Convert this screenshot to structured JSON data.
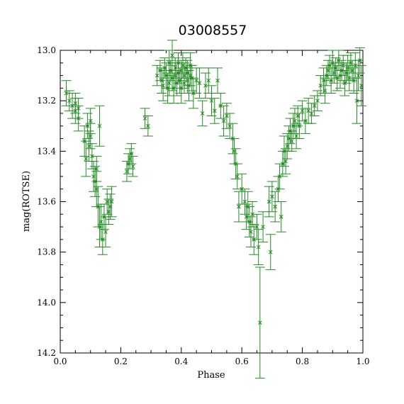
{
  "chart_data": {
    "type": "scatter",
    "title": "03008557",
    "xlabel": "Phase",
    "ylabel": "mag(ROTSE)",
    "xlim": [
      0,
      1
    ],
    "ylim": [
      14.2,
      13.0
    ],
    "y_inverted": true,
    "x_ticks": [
      "0.0",
      "0.2",
      "0.4",
      "0.6",
      "0.8",
      "1.0"
    ],
    "y_ticks": [
      "13.0",
      "13.2",
      "13.4",
      "13.6",
      "13.8",
      "14.0",
      "14.2"
    ],
    "grid": false,
    "marker": "x",
    "error_bars": true,
    "color": "#228b22",
    "points": [
      [
        0.02,
        13.17,
        0.05
      ],
      [
        0.03,
        13.2,
        0.04
      ],
      [
        0.04,
        13.22,
        0.05
      ],
      [
        0.05,
        13.21,
        0.04
      ],
      [
        0.05,
        13.24,
        0.05
      ],
      [
        0.06,
        13.23,
        0.04
      ],
      [
        0.06,
        13.27,
        0.05
      ],
      [
        0.08,
        13.36,
        0.06
      ],
      [
        0.085,
        13.43,
        0.07
      ],
      [
        0.09,
        13.3,
        0.05
      ],
      [
        0.095,
        13.38,
        0.06
      ],
      [
        0.1,
        13.34,
        0.05
      ],
      [
        0.1,
        13.28,
        0.05
      ],
      [
        0.105,
        13.42,
        0.05
      ],
      [
        0.11,
        13.5,
        0.06
      ],
      [
        0.115,
        13.52,
        0.06
      ],
      [
        0.12,
        13.47,
        0.05
      ],
      [
        0.12,
        13.55,
        0.07
      ],
      [
        0.125,
        13.62,
        0.08
      ],
      [
        0.13,
        13.7,
        0.08
      ],
      [
        0.13,
        13.3,
        0.08
      ],
      [
        0.135,
        13.68,
        0.07
      ],
      [
        0.14,
        13.75,
        0.06
      ],
      [
        0.145,
        13.66,
        0.05
      ],
      [
        0.15,
        13.72,
        0.06
      ],
      [
        0.155,
        13.6,
        0.05
      ],
      [
        0.16,
        13.64,
        0.05
      ],
      [
        0.165,
        13.62,
        0.05
      ],
      [
        0.17,
        13.6,
        0.06
      ],
      [
        0.22,
        13.48,
        0.04
      ],
      [
        0.225,
        13.45,
        0.04
      ],
      [
        0.23,
        13.43,
        0.04
      ],
      [
        0.235,
        13.41,
        0.04
      ],
      [
        0.24,
        13.46,
        0.04
      ],
      [
        0.28,
        13.27,
        0.04
      ],
      [
        0.29,
        13.3,
        0.04
      ],
      [
        0.32,
        13.1,
        0.04
      ],
      [
        0.33,
        13.08,
        0.04
      ],
      [
        0.335,
        13.12,
        0.05
      ],
      [
        0.34,
        13.14,
        0.06
      ],
      [
        0.345,
        13.07,
        0.04
      ],
      [
        0.35,
        13.1,
        0.05
      ],
      [
        0.355,
        13.15,
        0.06
      ],
      [
        0.36,
        13.05,
        0.05
      ],
      [
        0.36,
        13.13,
        0.05
      ],
      [
        0.365,
        13.08,
        0.04
      ],
      [
        0.37,
        13.02,
        0.06
      ],
      [
        0.37,
        13.11,
        0.05
      ],
      [
        0.375,
        13.15,
        0.06
      ],
      [
        0.38,
        13.07,
        0.04
      ],
      [
        0.38,
        13.1,
        0.05
      ],
      [
        0.385,
        13.13,
        0.05
      ],
      [
        0.39,
        13.05,
        0.04
      ],
      [
        0.39,
        13.09,
        0.04
      ],
      [
        0.395,
        13.12,
        0.05
      ],
      [
        0.4,
        13.08,
        0.04
      ],
      [
        0.4,
        13.15,
        0.06
      ],
      [
        0.405,
        13.06,
        0.05
      ],
      [
        0.41,
        13.1,
        0.05
      ],
      [
        0.41,
        13.13,
        0.04
      ],
      [
        0.415,
        13.07,
        0.04
      ],
      [
        0.42,
        13.12,
        0.05
      ],
      [
        0.42,
        13.09,
        0.05
      ],
      [
        0.425,
        13.14,
        0.06
      ],
      [
        0.43,
        13.1,
        0.04
      ],
      [
        0.43,
        13.06,
        0.05
      ],
      [
        0.435,
        13.11,
        0.05
      ],
      [
        0.44,
        13.17,
        0.06
      ],
      [
        0.45,
        13.12,
        0.05
      ],
      [
        0.46,
        13.13,
        0.06
      ],
      [
        0.47,
        13.25,
        0.05
      ],
      [
        0.48,
        13.14,
        0.05
      ],
      [
        0.49,
        13.12,
        0.05
      ],
      [
        0.5,
        13.2,
        0.06
      ],
      [
        0.51,
        13.24,
        0.05
      ],
      [
        0.52,
        13.12,
        0.05
      ],
      [
        0.53,
        13.22,
        0.05
      ],
      [
        0.54,
        13.28,
        0.06
      ],
      [
        0.55,
        13.26,
        0.05
      ],
      [
        0.56,
        13.3,
        0.05
      ],
      [
        0.57,
        13.35,
        0.06
      ],
      [
        0.575,
        13.4,
        0.05
      ],
      [
        0.58,
        13.45,
        0.06
      ],
      [
        0.585,
        13.5,
        0.05
      ],
      [
        0.59,
        13.62,
        0.06
      ],
      [
        0.6,
        13.55,
        0.06
      ],
      [
        0.61,
        13.6,
        0.05
      ],
      [
        0.615,
        13.66,
        0.05
      ],
      [
        0.62,
        13.62,
        0.06
      ],
      [
        0.625,
        13.68,
        0.06
      ],
      [
        0.63,
        13.72,
        0.06
      ],
      [
        0.635,
        13.65,
        0.05
      ],
      [
        0.64,
        13.75,
        0.06
      ],
      [
        0.65,
        13.7,
        0.05
      ],
      [
        0.655,
        13.78,
        0.07
      ],
      [
        0.66,
        14.08,
        0.22
      ],
      [
        0.67,
        13.7,
        0.06
      ],
      [
        0.69,
        13.6,
        0.06
      ],
      [
        0.695,
        13.8,
        0.07
      ],
      [
        0.7,
        13.58,
        0.06
      ],
      [
        0.71,
        13.62,
        0.06
      ],
      [
        0.72,
        13.55,
        0.05
      ],
      [
        0.725,
        13.5,
        0.05
      ],
      [
        0.73,
        13.66,
        0.06
      ],
      [
        0.735,
        13.45,
        0.05
      ],
      [
        0.74,
        13.4,
        0.06
      ],
      [
        0.745,
        13.44,
        0.05
      ],
      [
        0.75,
        13.38,
        0.05
      ],
      [
        0.755,
        13.35,
        0.05
      ],
      [
        0.76,
        13.32,
        0.05
      ],
      [
        0.765,
        13.36,
        0.04
      ],
      [
        0.77,
        13.3,
        0.05
      ],
      [
        0.775,
        13.28,
        0.05
      ],
      [
        0.78,
        13.34,
        0.05
      ],
      [
        0.785,
        13.26,
        0.04
      ],
      [
        0.79,
        13.3,
        0.05
      ],
      [
        0.8,
        13.24,
        0.04
      ],
      [
        0.81,
        13.28,
        0.05
      ],
      [
        0.82,
        13.24,
        0.05
      ],
      [
        0.83,
        13.25,
        0.04
      ],
      [
        0.84,
        13.22,
        0.04
      ],
      [
        0.85,
        13.2,
        0.04
      ],
      [
        0.86,
        13.14,
        0.04
      ],
      [
        0.87,
        13.12,
        0.05
      ],
      [
        0.875,
        13.16,
        0.05
      ],
      [
        0.88,
        13.1,
        0.04
      ],
      [
        0.885,
        13.08,
        0.04
      ],
      [
        0.89,
        13.06,
        0.04
      ],
      [
        0.895,
        13.12,
        0.05
      ],
      [
        0.9,
        13.05,
        0.05
      ],
      [
        0.905,
        13.09,
        0.04
      ],
      [
        0.91,
        13.07,
        0.04
      ],
      [
        0.915,
        13.11,
        0.05
      ],
      [
        0.92,
        13.04,
        0.04
      ],
      [
        0.925,
        13.1,
        0.05
      ],
      [
        0.93,
        13.08,
        0.04
      ],
      [
        0.935,
        13.06,
        0.04
      ],
      [
        0.94,
        13.13,
        0.05
      ],
      [
        0.945,
        13.09,
        0.04
      ],
      [
        0.95,
        13.07,
        0.05
      ],
      [
        0.955,
        13.11,
        0.05
      ],
      [
        0.96,
        13.05,
        0.04
      ],
      [
        0.965,
        13.08,
        0.04
      ],
      [
        0.97,
        13.12,
        0.05
      ],
      [
        0.975,
        13.06,
        0.05
      ],
      [
        0.98,
        13.2,
        0.09
      ],
      [
        0.985,
        13.1,
        0.06
      ],
      [
        0.99,
        13.04,
        0.05
      ],
      [
        0.995,
        13.14,
        0.08
      ]
    ]
  }
}
